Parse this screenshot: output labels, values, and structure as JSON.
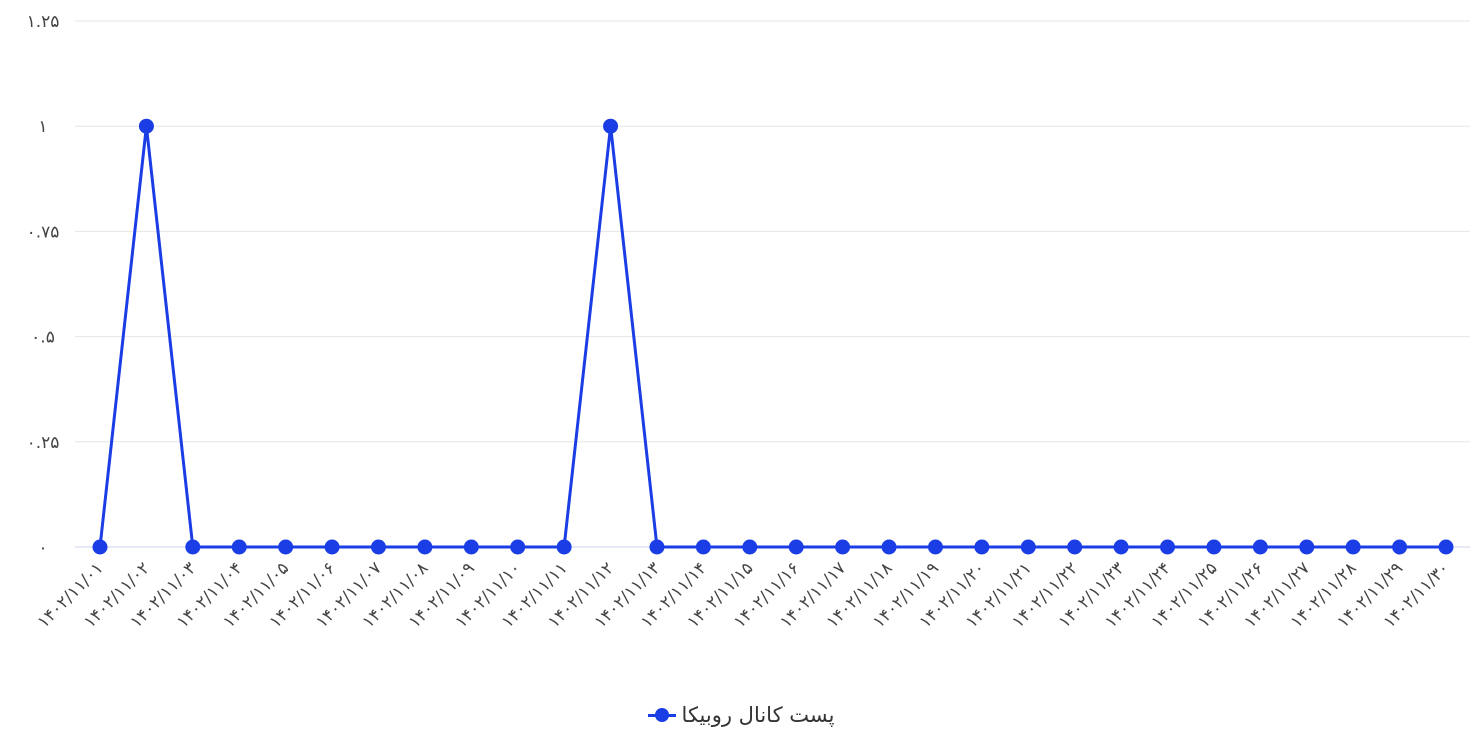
{
  "chart_data": {
    "type": "line",
    "categories": [
      "۱۴۰۲/۱۱/۰۱",
      "۱۴۰۲/۱۱/۰۲",
      "۱۴۰۲/۱۱/۰۳",
      "۱۴۰۲/۱۱/۰۴",
      "۱۴۰۲/۱۱/۰۵",
      "۱۴۰۲/۱۱/۰۶",
      "۱۴۰۲/۱۱/۰۷",
      "۱۴۰۲/۱۱/۰۸",
      "۱۴۰۲/۱۱/۰۹",
      "۱۴۰۲/۱۱/۱۰",
      "۱۴۰۲/۱۱/۱۱",
      "۱۴۰۲/۱۱/۱۲",
      "۱۴۰۲/۱۱/۱۳",
      "۱۴۰۲/۱۱/۱۴",
      "۱۴۰۲/۱۱/۱۵",
      "۱۴۰۲/۱۱/۱۶",
      "۱۴۰۲/۱۱/۱۷",
      "۱۴۰۲/۱۱/۱۸",
      "۱۴۰۲/۱۱/۱۹",
      "۱۴۰۲/۱۱/۲۰",
      "۱۴۰۲/۱۱/۲۱",
      "۱۴۰۲/۱۱/۲۲",
      "۱۴۰۲/۱۱/۲۳",
      "۱۴۰۲/۱۱/۲۴",
      "۱۴۰۲/۱۱/۲۵",
      "۱۴۰۲/۱۱/۲۶",
      "۱۴۰۲/۱۱/۲۷",
      "۱۴۰۲/۱۱/۲۸",
      "۱۴۰۲/۱۱/۲۹",
      "۱۴۰۲/۱۱/۳۰"
    ],
    "series": [
      {
        "name": "پست کانال روبیکا",
        "values": [
          0,
          1,
          0,
          0,
          0,
          0,
          0,
          0,
          0,
          0,
          0,
          1,
          0,
          0,
          0,
          0,
          0,
          0,
          0,
          0,
          0,
          0,
          0,
          0,
          0,
          0,
          0,
          0,
          0,
          0
        ]
      }
    ],
    "ylim": [
      0,
      1.25
    ],
    "yticks": [
      0,
      0.25,
      0.5,
      0.75,
      1,
      1.25
    ],
    "ytick_labels": [
      "۰",
      "۰.۲۵",
      "۰.۵",
      "۰.۷۵",
      "۱",
      "۱.۲۵"
    ],
    "grid": true,
    "legend_position": "bottom",
    "series_color": "#1a3de6",
    "grid_color": "#e6e6e6"
  }
}
